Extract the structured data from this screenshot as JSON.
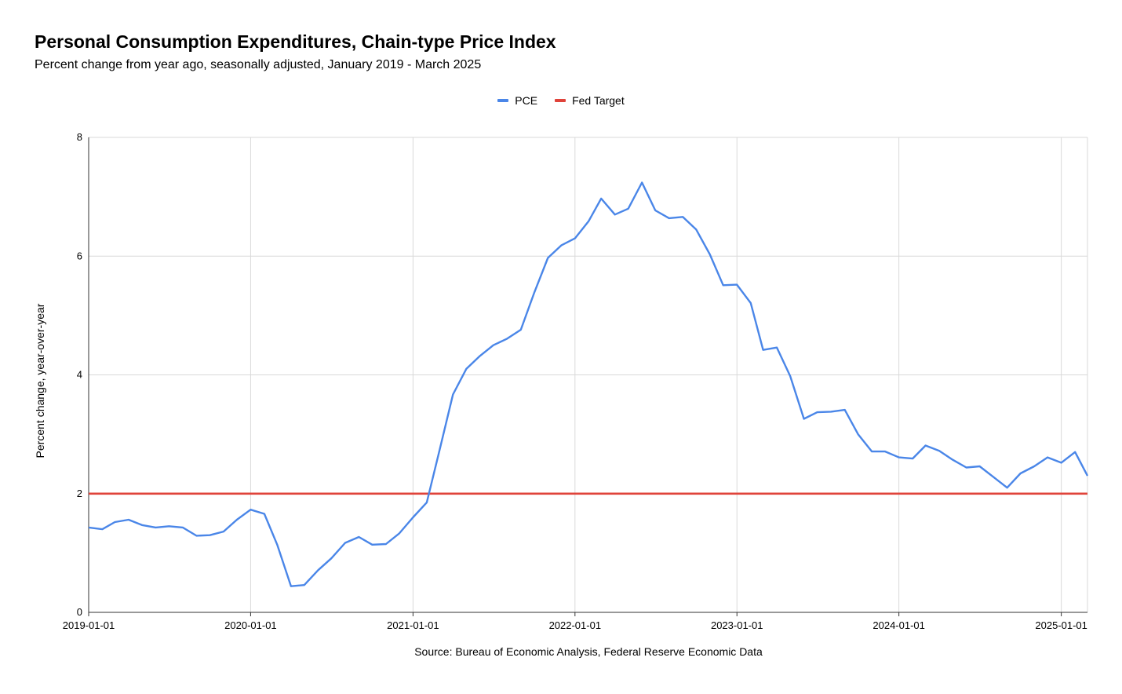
{
  "chart_data": {
    "type": "line",
    "title": "Personal Consumption Expenditures, Chain-type Price Index",
    "subtitle": "Percent change from year ago, seasonally adjusted, January 2019 - March 2025",
    "ylabel": "Percent change, year-over-year",
    "xlabel": "",
    "source": "Source: Bureau of Economic Analysis, Federal Reserve Economic Data",
    "ylim": [
      0,
      8
    ],
    "yticks": [
      0,
      2,
      4,
      6,
      8
    ],
    "xlim": [
      "2019-01-01",
      "2025-03-01"
    ],
    "xticks": [
      "2019-01-01",
      "2020-01-01",
      "2021-01-01",
      "2022-01-01",
      "2023-01-01",
      "2024-01-01",
      "2025-01-01"
    ],
    "grid": true,
    "legend_position": "top-center",
    "series": [
      {
        "name": "PCE",
        "color": "#4a86e8",
        "x": [
          "2019-01-01",
          "2019-02-01",
          "2019-03-01",
          "2019-04-01",
          "2019-05-01",
          "2019-06-01",
          "2019-07-01",
          "2019-08-01",
          "2019-09-01",
          "2019-10-01",
          "2019-11-01",
          "2019-12-01",
          "2020-01-01",
          "2020-02-01",
          "2020-03-01",
          "2020-04-01",
          "2020-05-01",
          "2020-06-01",
          "2020-07-01",
          "2020-08-01",
          "2020-09-01",
          "2020-10-01",
          "2020-11-01",
          "2020-12-01",
          "2021-01-01",
          "2021-02-01",
          "2021-03-01",
          "2021-04-01",
          "2021-05-01",
          "2021-06-01",
          "2021-07-01",
          "2021-08-01",
          "2021-09-01",
          "2021-10-01",
          "2021-11-01",
          "2021-12-01",
          "2022-01-01",
          "2022-02-01",
          "2022-03-01",
          "2022-04-01",
          "2022-05-01",
          "2022-06-01",
          "2022-07-01",
          "2022-08-01",
          "2022-09-01",
          "2022-10-01",
          "2022-11-01",
          "2022-12-01",
          "2023-01-01",
          "2023-02-01",
          "2023-03-01",
          "2023-04-01",
          "2023-05-01",
          "2023-06-01",
          "2023-07-01",
          "2023-08-01",
          "2023-09-01",
          "2023-10-01",
          "2023-11-01",
          "2023-12-01",
          "2024-01-01",
          "2024-02-01",
          "2024-03-01",
          "2024-04-01",
          "2024-05-01",
          "2024-06-01",
          "2024-07-01",
          "2024-08-01",
          "2024-09-01",
          "2024-10-01",
          "2024-11-01",
          "2024-12-01",
          "2025-01-01",
          "2025-02-01",
          "2025-03-01"
        ],
        "values": [
          1.43,
          1.4,
          1.52,
          1.56,
          1.47,
          1.43,
          1.45,
          1.43,
          1.29,
          1.3,
          1.36,
          1.56,
          1.73,
          1.66,
          1.14,
          0.44,
          0.46,
          0.71,
          0.91,
          1.17,
          1.27,
          1.14,
          1.15,
          1.33,
          1.6,
          1.85,
          2.71,
          3.67,
          4.1,
          4.32,
          4.5,
          4.61,
          4.76,
          5.38,
          5.97,
          6.18,
          6.3,
          6.59,
          6.97,
          6.7,
          6.8,
          7.24,
          6.77,
          6.64,
          6.66,
          6.45,
          6.03,
          5.51,
          5.52,
          5.21,
          4.42,
          4.46,
          3.98,
          3.26,
          3.37,
          3.38,
          3.41,
          3.0,
          2.71,
          2.71,
          2.61,
          2.59,
          2.81,
          2.72,
          2.57,
          2.44,
          2.46,
          2.28,
          2.1,
          2.34,
          2.46,
          2.61,
          2.52,
          2.7,
          2.3
        ]
      },
      {
        "name": "Fed Target",
        "color": "#e0433a",
        "x": [
          "2019-01-01",
          "2025-03-01"
        ],
        "values": [
          2,
          2
        ]
      }
    ]
  }
}
